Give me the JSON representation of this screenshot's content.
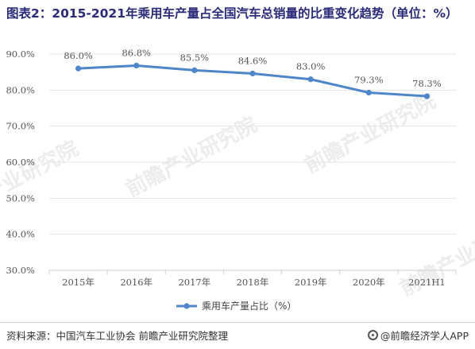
{
  "title": "图表2：2015-2021年乘用车产量占全国汽车总销量的比重变化趋势（单位：%）",
  "source": "资料来源：中国汽车工业协会 前瞻产业研究院整理",
  "brand": "@前瞻经济学人APP",
  "watermark": "前瞻产业研究院",
  "colors": {
    "line": "#4f86c9",
    "grid": "#e3e3e3",
    "axis_text": "#555555",
    "label_text": "#555555"
  },
  "chart_data": {
    "type": "line",
    "title": "图表2：2015-2021年乘用车产量占全国汽车总销量的比重变化趋势（单位：%）",
    "categories": [
      "2015年",
      "2016年",
      "2017年",
      "2018年",
      "2019年",
      "2020年",
      "2021H1"
    ],
    "series": [
      {
        "name": "乘用车产量占比（%）",
        "values": [
          86.0,
          86.8,
          85.5,
          84.6,
          83.0,
          79.3,
          78.3
        ],
        "labels": [
          "86.0%",
          "86.8%",
          "85.5%",
          "84.6%",
          "83.0%",
          "79.3%",
          "78.3%"
        ]
      }
    ],
    "ylim": [
      30,
      90
    ],
    "yticks": [
      "30.0%",
      "40.0%",
      "50.0%",
      "60.0%",
      "70.0%",
      "80.0%",
      "90.0%"
    ],
    "ytick_values": [
      30,
      40,
      50,
      60,
      70,
      80,
      90
    ],
    "grid": true,
    "legend": "bottom-center"
  }
}
